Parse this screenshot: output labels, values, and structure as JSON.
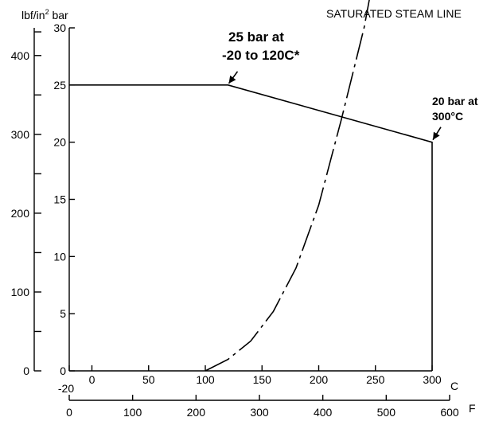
{
  "chart_data": {
    "type": "line",
    "title": "",
    "units": {
      "psi": "lbf/in",
      "psi_sup": "2",
      "bar": "bar",
      "celsius": "C",
      "fahrenheit": "F"
    },
    "axes": {
      "bar": {
        "range": [
          0,
          30
        ],
        "ticks": [
          0,
          5,
          10,
          15,
          20,
          25,
          30
        ]
      },
      "psi": {
        "range": [
          0,
          435.1
        ],
        "ticks": [
          0,
          100,
          200,
          300,
          400
        ],
        "minor_ticks": [
          50,
          150,
          250,
          350,
          430
        ]
      },
      "celsius": {
        "range": [
          -20,
          300
        ],
        "ticks": [
          -20,
          0,
          50,
          100,
          150,
          200,
          250,
          300
        ]
      },
      "fahrenheit": {
        "range": [
          0,
          600
        ],
        "ticks": [
          0,
          100,
          200,
          300,
          400,
          500,
          600
        ]
      }
    },
    "series": [
      {
        "style": "solid",
        "x": [
          -20,
          120,
          300,
          300
        ],
        "y": [
          25,
          25,
          20,
          0
        ]
      },
      {
        "name": "SATURATED STEAM LINE",
        "style": "dash-dot",
        "x": [
          100,
          120,
          140,
          160,
          180,
          200,
          220,
          240,
          255
        ],
        "y": [
          0,
          1,
          2.6,
          5.2,
          9,
          14.5,
          22,
          30,
          38
        ]
      }
    ],
    "annotations": [
      {
        "lines": [
          "25 bar at",
          "-20 to 120C*"
        ],
        "point": [
          120,
          25
        ]
      },
      {
        "lines": [
          "20 bar at",
          "300°C"
        ],
        "point": [
          300,
          20
        ]
      }
    ]
  }
}
